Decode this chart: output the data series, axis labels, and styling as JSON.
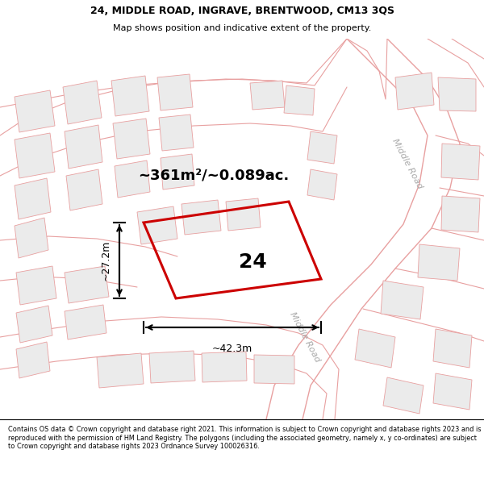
{
  "title_line1": "24, MIDDLE ROAD, INGRAVE, BRENTWOOD, CM13 3QS",
  "title_line2": "Map shows position and indicative extent of the property.",
  "footer_text": "Contains OS data © Crown copyright and database right 2021. This information is subject to Crown copyright and database rights 2023 and is reproduced with the permission of HM Land Registry. The polygons (including the associated geometry, namely x, y co-ordinates) are subject to Crown copyright and database rights 2023 Ordnance Survey 100026316.",
  "area_text": "~361m²/~0.089ac.",
  "plot_number": "24",
  "dim_width": "~42.3m",
  "dim_height": "~27.2m",
  "map_bg": "#ffffff",
  "highlight_fill": "none",
  "highlight_stroke": "#cc0000",
  "road_stroke": "#e8a0a0",
  "parcel_stroke": "#e8a0a0",
  "parcel_fill": "#ebebeb",
  "title_fontsize": 9,
  "subtitle_fontsize": 8,
  "area_fontsize": 13,
  "plot_num_fontsize": 18,
  "dim_fontsize": 9,
  "road_label_color": "#aaaaaa",
  "road_label_fontsize": 8
}
